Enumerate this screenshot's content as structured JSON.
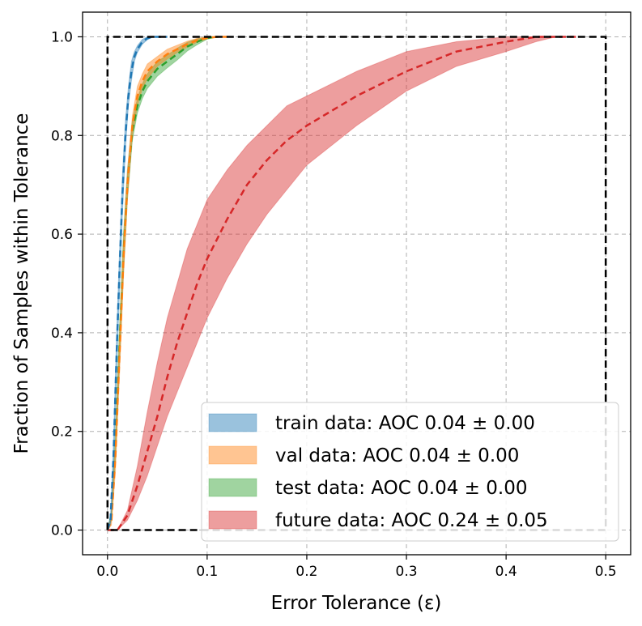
{
  "chart_data": {
    "type": "line",
    "xlabel": "Error Tolerance (ε)",
    "ylabel": "Fraction of Samples within Tolerance",
    "xlim": [
      -0.025,
      0.525
    ],
    "ylim": [
      -0.05,
      1.05
    ],
    "x_ticks": [
      "0.0",
      "0.1",
      "0.2",
      "0.3",
      "0.4",
      "0.5"
    ],
    "y_ticks": [
      "0.0",
      "0.2",
      "0.4",
      "0.6",
      "0.8",
      "1.0"
    ],
    "grid": true,
    "legend_position": "lower-right",
    "reference_box": {
      "x": [
        0,
        0.5
      ],
      "y": [
        0,
        1
      ],
      "color": "#000000"
    },
    "series": [
      {
        "name": "train data: AOC 0.04 ± 0.00",
        "color": "#1f77b4",
        "x": [
          0,
          0.003,
          0.006,
          0.009,
          0.012,
          0.015,
          0.018,
          0.021,
          0.024,
          0.027,
          0.03,
          0.035,
          0.04,
          0.045,
          0.05,
          0.06
        ],
        "mean": [
          0,
          0.02,
          0.15,
          0.35,
          0.52,
          0.68,
          0.8,
          0.88,
          0.93,
          0.96,
          0.975,
          0.99,
          0.997,
          1.0,
          1.0,
          1.0
        ],
        "lower": [
          0,
          0.01,
          0.12,
          0.31,
          0.48,
          0.64,
          0.77,
          0.86,
          0.91,
          0.95,
          0.968,
          0.985,
          0.994,
          0.999,
          1.0,
          1.0
        ],
        "upper": [
          0,
          0.03,
          0.18,
          0.39,
          0.56,
          0.72,
          0.83,
          0.9,
          0.95,
          0.97,
          0.982,
          0.995,
          1.0,
          1.0,
          1.0,
          1.0
        ]
      },
      {
        "name": "val data: AOC 0.04 ± 0.00",
        "color": "#ff7f0e",
        "x": [
          0,
          0.004,
          0.008,
          0.012,
          0.016,
          0.02,
          0.025,
          0.03,
          0.035,
          0.04,
          0.05,
          0.06,
          0.07,
          0.08,
          0.09,
          0.1,
          0.11,
          0.12
        ],
        "mean": [
          0,
          0.02,
          0.15,
          0.35,
          0.55,
          0.7,
          0.82,
          0.88,
          0.91,
          0.93,
          0.95,
          0.965,
          0.975,
          0.985,
          0.993,
          0.998,
          1.0,
          1.0
        ],
        "lower": [
          0,
          0.01,
          0.12,
          0.31,
          0.51,
          0.67,
          0.8,
          0.86,
          0.895,
          0.915,
          0.94,
          0.955,
          0.968,
          0.979,
          0.989,
          0.996,
          0.999,
          1.0
        ],
        "upper": [
          0,
          0.03,
          0.18,
          0.39,
          0.59,
          0.73,
          0.84,
          0.9,
          0.925,
          0.945,
          0.96,
          0.975,
          0.983,
          0.991,
          0.997,
          1.0,
          1.0,
          1.0
        ]
      },
      {
        "name": "test data: AOC 0.04 ± 0.00",
        "color": "#2ca02c",
        "x": [
          0,
          0.004,
          0.008,
          0.012,
          0.016,
          0.02,
          0.025,
          0.03,
          0.035,
          0.04,
          0.05,
          0.06,
          0.07,
          0.08,
          0.09,
          0.1,
          0.11
        ],
        "mean": [
          0,
          0.03,
          0.17,
          0.37,
          0.56,
          0.7,
          0.81,
          0.86,
          0.89,
          0.91,
          0.935,
          0.95,
          0.965,
          0.98,
          0.99,
          0.998,
          1.0
        ],
        "lower": [
          0,
          0.02,
          0.14,
          0.33,
          0.52,
          0.67,
          0.79,
          0.845,
          0.875,
          0.895,
          0.92,
          0.937,
          0.953,
          0.971,
          0.984,
          0.995,
          1.0
        ],
        "upper": [
          0,
          0.04,
          0.2,
          0.41,
          0.6,
          0.73,
          0.83,
          0.875,
          0.905,
          0.925,
          0.95,
          0.963,
          0.977,
          0.989,
          0.996,
          1.0,
          1.0
        ]
      },
      {
        "name": "future data: AOC 0.24 ± 0.05",
        "color": "#d62728",
        "x": [
          0,
          0.01,
          0.02,
          0.03,
          0.04,
          0.05,
          0.06,
          0.07,
          0.08,
          0.09,
          0.1,
          0.12,
          0.14,
          0.16,
          0.18,
          0.2,
          0.25,
          0.3,
          0.35,
          0.4,
          0.43,
          0.45,
          0.47
        ],
        "mean": [
          0,
          0.0,
          0.03,
          0.09,
          0.16,
          0.23,
          0.31,
          0.38,
          0.44,
          0.5,
          0.55,
          0.63,
          0.7,
          0.75,
          0.79,
          0.82,
          0.88,
          0.93,
          0.97,
          0.99,
          1.0,
          1.0,
          1.0
        ],
        "lower": [
          0,
          0.0,
          0.02,
          0.06,
          0.11,
          0.17,
          0.23,
          0.28,
          0.33,
          0.38,
          0.43,
          0.51,
          0.58,
          0.64,
          0.69,
          0.74,
          0.82,
          0.89,
          0.94,
          0.97,
          0.99,
          1.0,
          1.0
        ],
        "upper": [
          0,
          0.0,
          0.04,
          0.13,
          0.24,
          0.34,
          0.43,
          0.5,
          0.57,
          0.62,
          0.67,
          0.73,
          0.78,
          0.82,
          0.86,
          0.88,
          0.93,
          0.97,
          0.99,
          1.0,
          1.0,
          1.0,
          1.0
        ]
      }
    ]
  }
}
